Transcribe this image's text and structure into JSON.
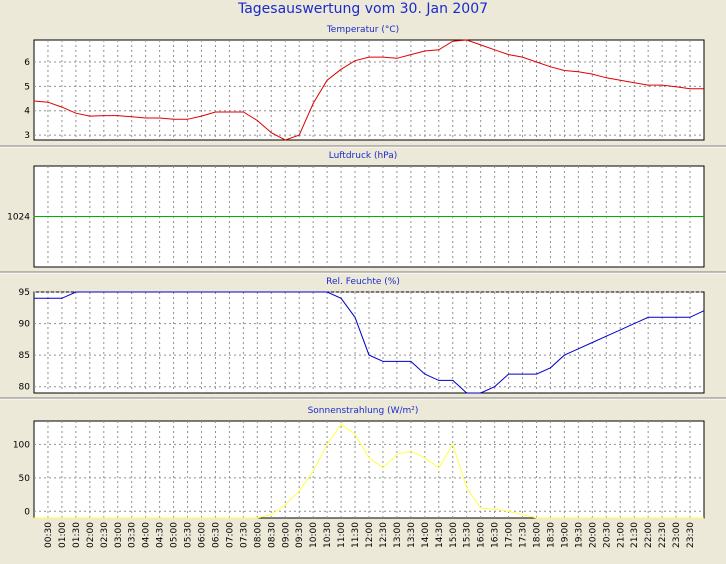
{
  "title": "Tagesauswertung vom 30. Jan 2007",
  "colors": {
    "background": "#ece9d8",
    "plot": "#ffffff",
    "title": "#1a2bcc",
    "temperature": "#e00000",
    "pressure": "#00b000",
    "humidity": "#0000cc",
    "solar": "#ffff44"
  },
  "x_tick_labels": [
    "00:30",
    "01:00",
    "01:30",
    "02:00",
    "02:30",
    "03:00",
    "03:30",
    "04:00",
    "04:30",
    "05:00",
    "05:30",
    "06:00",
    "06:30",
    "07:00",
    "07:30",
    "08:00",
    "08:30",
    "09:00",
    "09:30",
    "10:00",
    "10:30",
    "11:00",
    "11:30",
    "12:00",
    "12:30",
    "13:00",
    "13:30",
    "14:00",
    "14:30",
    "15:00",
    "15:30",
    "16:00",
    "16:30",
    "17:00",
    "17:30",
    "18:00",
    "18:30",
    "19:00",
    "19:30",
    "20:00",
    "20:30",
    "21:00",
    "21:30",
    "22:00",
    "22:30",
    "23:00",
    "23:30"
  ],
  "chart_data": [
    {
      "type": "line",
      "title": "Temperatur (°C)",
      "ylim": [
        2.8,
        6.9
      ],
      "yticks": [
        3,
        4,
        5,
        6
      ],
      "grid": true,
      "x": [
        "00:00",
        "00:30",
        "01:00",
        "01:30",
        "02:00",
        "02:30",
        "03:00",
        "03:30",
        "04:00",
        "04:30",
        "05:00",
        "05:30",
        "06:00",
        "06:30",
        "07:00",
        "07:30",
        "08:00",
        "08:30",
        "09:00",
        "09:30",
        "10:00",
        "10:30",
        "11:00",
        "11:30",
        "12:00",
        "12:30",
        "13:00",
        "13:30",
        "14:00",
        "14:30",
        "15:00",
        "15:30",
        "16:00",
        "16:30",
        "17:00",
        "17:30",
        "18:00",
        "18:30",
        "19:00",
        "19:30",
        "20:00",
        "20:30",
        "21:00",
        "21:30",
        "22:00",
        "22:30",
        "23:00",
        "23:30",
        "23:59"
      ],
      "values": [
        4.4,
        4.35,
        4.15,
        3.9,
        3.78,
        3.8,
        3.8,
        3.75,
        3.7,
        3.7,
        3.65,
        3.65,
        3.78,
        3.95,
        3.95,
        3.95,
        3.6,
        3.1,
        2.8,
        3.0,
        4.3,
        5.25,
        5.7,
        6.05,
        6.2,
        6.2,
        6.15,
        6.3,
        6.45,
        6.5,
        6.85,
        6.9,
        6.7,
        6.5,
        6.3,
        6.2,
        6.0,
        5.8,
        5.65,
        5.6,
        5.5,
        5.35,
        5.25,
        5.15,
        5.05,
        5.05,
        4.98,
        4.9,
        4.9
      ],
      "color": "#e00000"
    },
    {
      "type": "line",
      "title": "Luftdruck (hPa)",
      "ylim": [
        1023,
        1025
      ],
      "yticks": [
        1024
      ],
      "grid": true,
      "x": [
        "00:00",
        "23:59"
      ],
      "values": [
        1024,
        1024
      ],
      "color": "#00b000"
    },
    {
      "type": "line",
      "title": "Rel. Feuchte (%)",
      "ylim": [
        79,
        95
      ],
      "yticks": [
        80,
        85,
        90,
        95
      ],
      "grid": true,
      "x": [
        "00:00",
        "00:30",
        "01:00",
        "01:30",
        "02:00",
        "02:30",
        "03:00",
        "03:30",
        "04:00",
        "04:30",
        "05:00",
        "05:30",
        "06:00",
        "06:30",
        "07:00",
        "07:30",
        "08:00",
        "08:30",
        "09:00",
        "09:30",
        "10:00",
        "10:30",
        "11:00",
        "11:30",
        "12:00",
        "12:30",
        "13:00",
        "13:30",
        "14:00",
        "14:30",
        "15:00",
        "15:30",
        "16:00",
        "16:30",
        "17:00",
        "17:30",
        "18:00",
        "18:30",
        "19:00",
        "19:30",
        "20:00",
        "20:30",
        "21:00",
        "21:30",
        "22:00",
        "22:30",
        "23:00",
        "23:30",
        "23:59"
      ],
      "values": [
        94,
        94,
        94,
        95,
        95,
        95,
        95,
        95,
        95,
        95,
        95,
        95,
        95,
        95,
        95,
        95,
        95,
        95,
        95,
        95,
        95,
        95,
        94,
        91,
        85,
        84,
        84,
        84,
        82,
        81,
        81,
        79,
        79,
        80,
        82,
        82,
        82,
        83,
        85,
        86,
        87,
        88,
        89,
        90,
        91,
        91,
        91,
        91,
        92
      ],
      "color": "#0000cc"
    },
    {
      "type": "line",
      "title": "Sonnenstrahlung (W/m²)",
      "ylim": [
        -10,
        135
      ],
      "yticks": [
        0,
        50,
        100
      ],
      "grid": true,
      "x": [
        "00:00",
        "00:30",
        "01:00",
        "01:30",
        "02:00",
        "02:30",
        "03:00",
        "03:30",
        "04:00",
        "04:30",
        "05:00",
        "05:30",
        "06:00",
        "06:30",
        "07:00",
        "07:30",
        "08:00",
        "08:30",
        "09:00",
        "09:30",
        "10:00",
        "10:30",
        "11:00",
        "11:30",
        "12:00",
        "12:30",
        "13:00",
        "13:30",
        "14:00",
        "14:30",
        "15:00",
        "15:30",
        "16:00",
        "16:30",
        "17:00",
        "17:30",
        "18:00",
        "18:30",
        "19:00",
        "19:30",
        "20:00",
        "20:30",
        "21:00",
        "21:30",
        "22:00",
        "22:30",
        "23:00",
        "23:30",
        "23:59"
      ],
      "values": [
        -10,
        -10,
        -10,
        -10,
        -10,
        -10,
        -10,
        -10,
        -10,
        -10,
        -10,
        -10,
        -10,
        -10,
        -10,
        -10,
        -10,
        -5,
        10,
        30,
        60,
        100,
        130,
        115,
        80,
        65,
        85,
        90,
        80,
        65,
        100,
        35,
        5,
        3,
        0,
        -5,
        -10,
        -10,
        -10,
        -10,
        -10,
        -10,
        -10,
        -10,
        -10,
        -10,
        -10,
        -10,
        -10
      ],
      "color": "#ffff44"
    }
  ]
}
